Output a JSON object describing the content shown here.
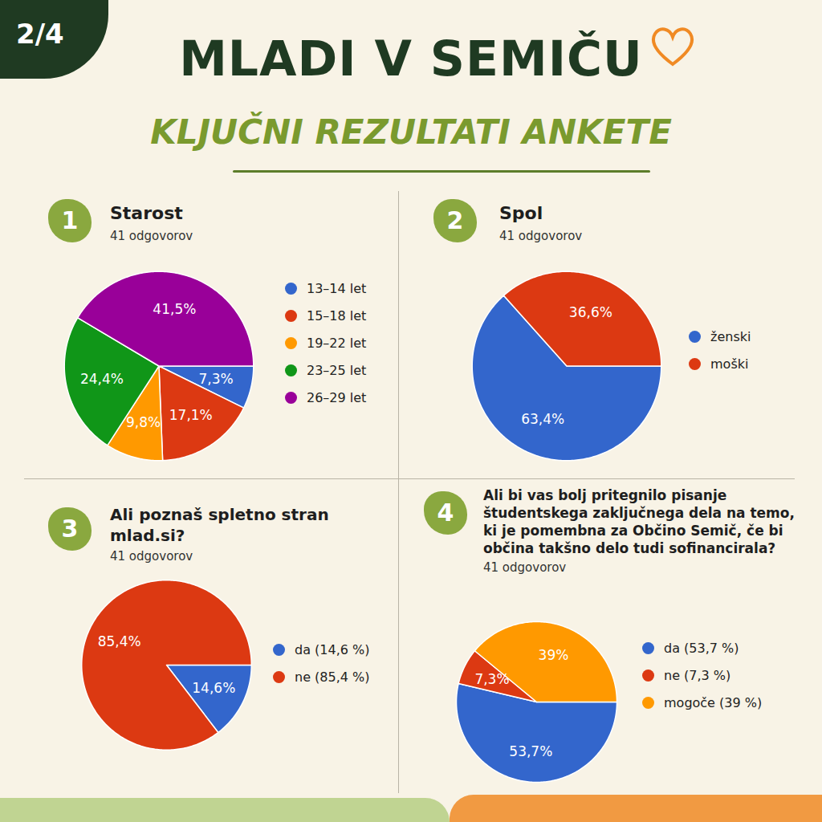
{
  "page": "2/4",
  "title": "MLADI V SEMIČU",
  "subtitle": "KLJUČNI REZULTATI ANKETE",
  "chart_data": [
    {
      "type": "pie",
      "number": "1",
      "title": "Starost",
      "subtitle": "41 odgovorov",
      "categories": [
        "13–14 let",
        "15–18 let",
        "19–22 let",
        "23–25 let",
        "26–29 let"
      ],
      "values": [
        7.3,
        17.1,
        9.8,
        24.4,
        41.5
      ],
      "value_labels": [
        "7,3%",
        "17,1%",
        "9,8%",
        "24,4%",
        "41,5%"
      ],
      "colors": [
        "#3366cc",
        "#dc3912",
        "#ff9900",
        "#109618",
        "#990099"
      ],
      "data_labels": true,
      "legend": "right"
    },
    {
      "type": "pie",
      "number": "2",
      "title": "Spol",
      "subtitle": "41 odgovorov",
      "categories": [
        "ženski",
        "moški"
      ],
      "values": [
        63.4,
        36.6
      ],
      "value_labels": [
        "63,4%",
        "36,6%"
      ],
      "colors": [
        "#3366cc",
        "#dc3912"
      ],
      "data_labels": true,
      "legend": "right"
    },
    {
      "type": "pie",
      "number": "3",
      "title": "Ali poznaš spletno stran mlad.si?",
      "subtitle": "41 odgovorov",
      "categories": [
        "da (14,6 %)",
        "ne (85,4 %)"
      ],
      "values": [
        14.6,
        85.4
      ],
      "value_labels": [
        "14,6%",
        "85,4%"
      ],
      "colors": [
        "#3366cc",
        "#dc3912"
      ],
      "data_labels": true,
      "legend": "right"
    },
    {
      "type": "pie",
      "number": "4",
      "title": "Ali bi vas bolj pritegnilo pisanje študentskega zaključnega dela na temo, ki je pomembna za Občino Semič, če bi občina takšno delo tudi sofinancirala?",
      "subtitle": "41 odgovorov",
      "categories": [
        "da (53,7 %)",
        "ne (7,3 %)",
        "mogoče (39 %)"
      ],
      "values": [
        53.7,
        7.3,
        39
      ],
      "value_labels": [
        "53,7%",
        "7,3%",
        "39%"
      ],
      "colors": [
        "#3366cc",
        "#dc3912",
        "#ff9900"
      ],
      "data_labels": true,
      "legend": "right"
    }
  ]
}
